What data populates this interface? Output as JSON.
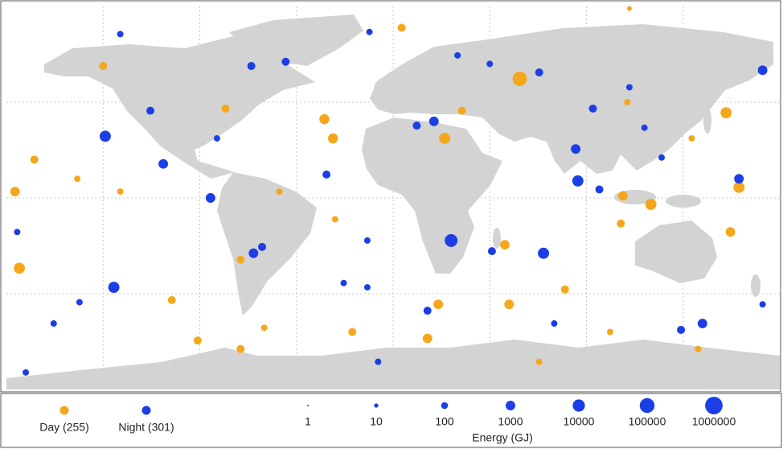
{
  "chart_data": {
    "type": "scatter",
    "xlim": [
      -180,
      180
    ],
    "ylim": [
      -90,
      90
    ],
    "xticks": [
      -135,
      -90,
      -45,
      0,
      45,
      90,
      135
    ],
    "yticks": [
      -45,
      0,
      45
    ],
    "grid": true,
    "series": [
      {
        "name": "Day (255)",
        "color": "#f5a71c",
        "x": [
          59,
          155,
          24,
          -32,
          -28,
          -174,
          -176,
          120,
          107,
          161,
          52,
          106,
          54,
          21,
          16,
          -91,
          4,
          -135,
          -103,
          -19,
          80,
          157,
          -167,
          -127,
          -71,
          -53,
          -27,
          142,
          68,
          101,
          110,
          -78,
          -71,
          -60,
          -147,
          32,
          139,
          109
        ],
        "y": [
          56,
          40,
          28,
          37,
          28,
          -33,
          3,
          -3,
          1,
          5,
          -22,
          -12,
          -50,
          -50,
          -66,
          -67,
          80,
          62,
          -48,
          -63,
          -43,
          -16,
          18,
          3,
          -29,
          3,
          -10,
          -71,
          -77,
          -63,
          89,
          42,
          -71,
          -61,
          9,
          41,
          28,
          45
        ],
        "sizes": [
          70000,
          4000,
          4000,
          1500,
          1500,
          4000,
          1000,
          4000,
          1000,
          4000,
          1000,
          260,
          1000,
          1000,
          1000,
          260,
          260,
          260,
          260,
          260,
          260,
          1000,
          260,
          65,
          260,
          65,
          65,
          65,
          65,
          65,
          16,
          260,
          260,
          65,
          65,
          260,
          65,
          65
        ]
      },
      {
        "name": "Night (301)",
        "color": "#1b3ee6",
        "x": [
          68,
          -130,
          -134,
          27,
          70,
          19,
          86,
          -85,
          -65,
          -107,
          -66,
          172,
          11,
          -61,
          16,
          144,
          134,
          161,
          96,
          -7,
          -171,
          -127,
          -11,
          -113,
          -12,
          -23,
          46,
          93,
          117,
          -50,
          30,
          45,
          -158,
          -175,
          -146,
          -82,
          -31,
          -12,
          85,
          110,
          125,
          172,
          75
        ],
        "y": [
          59,
          -42,
          29,
          -20,
          -26,
          36,
          8,
          0,
          -26,
          16,
          62,
          60,
          34,
          -23,
          -53,
          -59,
          -62,
          9,
          4,
          -77,
          -82,
          77,
          78,
          41,
          -42,
          -40,
          -25,
          42,
          33,
          64,
          67,
          63,
          -59,
          -16,
          -49,
          28,
          11,
          -20,
          23,
          52,
          19,
          -50,
          -59
        ],
        "sizes": [
          260,
          4000,
          4000,
          17000,
          4000,
          1000,
          4000,
          1000,
          1000,
          1000,
          260,
          1000,
          260,
          260,
          260,
          1000,
          260,
          1000,
          260,
          65,
          65,
          65,
          65,
          260,
          65,
          65,
          260,
          260,
          65,
          260,
          65,
          65,
          65,
          65,
          65,
          65,
          260,
          65,
          1000,
          65,
          65,
          65,
          65
        ]
      }
    ],
    "size_legend": {
      "title": "Energy (GJ)",
      "values": [
        1,
        10,
        100,
        1000,
        10000,
        100000,
        1000000
      ]
    }
  }
}
